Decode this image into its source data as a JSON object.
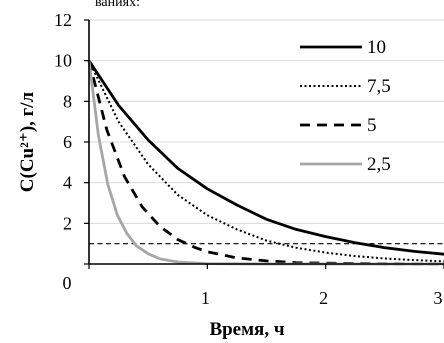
{
  "cropped_top_text": "ваниях:",
  "chart_data": {
    "type": "line",
    "xlabel": "Время, ч",
    "ylabel": "C(Cu²⁺), г/л",
    "xlim": [
      0,
      3
    ],
    "ylim": [
      0,
      12
    ],
    "x_ticks": [
      "0",
      "1",
      "2",
      "3"
    ],
    "y_ticks": [
      "2",
      "4",
      "6",
      "8",
      "10",
      "12"
    ],
    "grid": "horizontal",
    "legend_position": "top-right",
    "reference_line": {
      "y": 1,
      "style": "dashed"
    },
    "series": [
      {
        "name": "10",
        "color": "#000000",
        "style": "solid",
        "x": [
          0,
          0.25,
          0.5,
          0.75,
          1.0,
          1.25,
          1.5,
          1.75,
          2.0,
          2.25,
          2.5,
          2.75,
          3.0
        ],
        "y": [
          10,
          7.8,
          6.1,
          4.7,
          3.7,
          2.9,
          2.2,
          1.7,
          1.35,
          1.05,
          0.8,
          0.62,
          0.48
        ]
      },
      {
        "name": "7,5",
        "color": "#000000",
        "style": "dotted",
        "x": [
          0,
          0.25,
          0.5,
          0.75,
          1.0,
          1.25,
          1.5,
          1.75,
          2.0,
          2.25,
          2.5,
          2.75,
          3.0
        ],
        "y": [
          10,
          7.0,
          4.9,
          3.4,
          2.4,
          1.7,
          1.15,
          0.8,
          0.56,
          0.39,
          0.27,
          0.19,
          0.13
        ]
      },
      {
        "name": "5",
        "color": "#000000",
        "style": "dashed",
        "x": [
          0,
          0.15,
          0.3,
          0.45,
          0.6,
          0.75,
          0.9,
          1.0,
          1.25,
          1.5,
          1.75,
          2.0,
          2.5,
          3.0
        ],
        "y": [
          10,
          6.6,
          4.3,
          2.8,
          1.85,
          1.2,
          0.8,
          0.6,
          0.3,
          0.15,
          0.07,
          0.04,
          0.01,
          0.0
        ]
      },
      {
        "name": "2,5",
        "color": "#a6a6a6",
        "style": "solid",
        "x": [
          0,
          0.08,
          0.16,
          0.24,
          0.32,
          0.4,
          0.5,
          0.6,
          0.75,
          1.0,
          1.5,
          2.0,
          3.0
        ],
        "y": [
          10,
          6.3,
          3.9,
          2.4,
          1.5,
          0.9,
          0.5,
          0.25,
          0.1,
          0.02,
          0.0,
          0.0,
          0.0
        ]
      }
    ]
  }
}
